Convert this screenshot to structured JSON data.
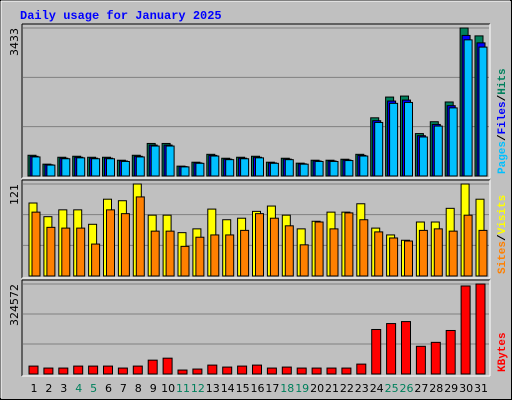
{
  "chart_data": [
    {
      "type": "bar",
      "title": "Daily usage for January 2025",
      "legend_separator": "/",
      "ylim": [
        0,
        3433
      ],
      "yticks": [
        3433
      ],
      "series": [
        {
          "name": "Hits",
          "color": "#00805c",
          "values": [
            481,
            275,
            435,
            458,
            435,
            435,
            366,
            481,
            755,
            755,
            229,
            320,
            503,
            412,
            435,
            458,
            320,
            412,
            298,
            366,
            366,
            389,
            503,
            1350,
            1831,
            1854,
            984,
            1259,
            1717,
            3433,
            3250
          ]
        },
        {
          "name": "Files",
          "color": "#0000ff",
          "values": [
            457,
            261,
            413,
            435,
            413,
            413,
            348,
            457,
            717,
            717,
            218,
            304,
            478,
            391,
            413,
            435,
            304,
            391,
            283,
            348,
            348,
            370,
            478,
            1283,
            1739,
            1761,
            935,
            1196,
            1631,
            3261,
            3088
          ]
        },
        {
          "name": "Pages",
          "color": "#00c0ff",
          "values": [
            442,
            253,
            400,
            421,
            400,
            400,
            337,
            442,
            695,
            695,
            211,
            294,
            463,
            379,
            400,
            421,
            294,
            379,
            274,
            337,
            337,
            358,
            463,
            1242,
            1685,
            1706,
            905,
            1158,
            1580,
            3158,
            2990
          ]
        }
      ]
    },
    {
      "type": "bar",
      "legend_separator": "/",
      "ylim": [
        0,
        121
      ],
      "yticks": [
        121
      ],
      "series": [
        {
          "name": "Visits",
          "color": "#ffff00",
          "values": [
            96,
            78,
            87,
            87,
            68,
            101,
            99,
            121,
            80,
            80,
            57,
            62,
            88,
            74,
            76,
            85,
            92,
            80,
            62,
            72,
            84,
            84,
            95,
            63,
            54,
            47,
            71,
            71,
            89,
            121,
            101
          ]
        },
        {
          "name": "Sites",
          "color": "#ff8000",
          "values": [
            84,
            64,
            63,
            63,
            42,
            87,
            82,
            104,
            59,
            59,
            39,
            51,
            54,
            54,
            60,
            82,
            76,
            66,
            41,
            71,
            62,
            83,
            74,
            58,
            50,
            46,
            60,
            62,
            59,
            80,
            60
          ]
        }
      ]
    },
    {
      "type": "bar",
      "ylim": [
        0,
        324572
      ],
      "yticks": [
        324572
      ],
      "categories": [
        "1",
        "2",
        "3",
        "4",
        "5",
        "6",
        "7",
        "8",
        "9",
        "10",
        "11",
        "12",
        "13",
        "14",
        "15",
        "16",
        "17",
        "18",
        "19",
        "20",
        "21",
        "22",
        "23",
        "24",
        "25",
        "26",
        "27",
        "28",
        "29",
        "30",
        "31"
      ],
      "category_colors": [
        "#000000",
        "#000000",
        "#000000",
        "#00805c",
        "#00805c",
        "#000000",
        "#000000",
        "#000000",
        "#000000",
        "#000000",
        "#00805c",
        "#00805c",
        "#000000",
        "#000000",
        "#000000",
        "#000000",
        "#000000",
        "#00805c",
        "#00805c",
        "#000000",
        "#000000",
        "#000000",
        "#000000",
        "#000000",
        "#00805c",
        "#00805c",
        "#000000",
        "#000000",
        "#000000",
        "#000000",
        "#000000"
      ],
      "series": [
        {
          "name": "KBytes",
          "color": "#ff0000",
          "values": [
            28535,
            21400,
            21400,
            28535,
            28535,
            28535,
            21400,
            28535,
            49936,
            57070,
            14268,
            17834,
            32100,
            24970,
            28535,
            32100,
            21400,
            24970,
            21400,
            21400,
            21400,
            21400,
            35670,
            160500,
            181900,
            189050,
            99870,
            114140,
            156940,
            317440,
            324572
          ]
        }
      ]
    }
  ]
}
